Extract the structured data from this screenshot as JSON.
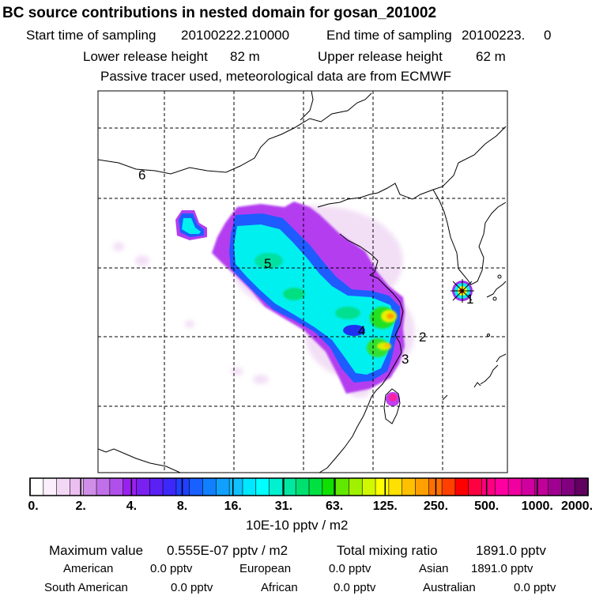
{
  "header": {
    "title": "BC  source contributions in nested domain for gosan_201002",
    "start_label": "Start time of sampling",
    "start_value": "20100222.210000",
    "end_label": "End time of sampling",
    "end_value": "20100223.     0",
    "lower_label": "Lower release height",
    "lower_value": "82 m",
    "upper_label": "Upper release height",
    "upper_value": "62 m",
    "tracer_note": "Passive tracer used, meteorological data are from ECMWF"
  },
  "map": {
    "region_labels": [
      "1",
      "2",
      "3",
      "4",
      "5",
      "6"
    ],
    "colors": {
      "land_border": "#000000",
      "grid": "#000000",
      "plume_low": "#f4e8f8",
      "plume_violet": "#a020f0",
      "plume_blue": "#1e6cff",
      "plume_cyan": "#00ffff",
      "plume_green": "#00e000",
      "plume_yellow": "#ffff00",
      "plume_red": "#ff2000"
    }
  },
  "colorbar": {
    "labels": [
      "0.",
      "2.",
      "4.",
      "8.",
      "16.",
      "31.",
      "63.",
      "125.",
      "250.",
      "500.",
      "1000.",
      "2000."
    ],
    "unit": "10E-10 pptv / m2",
    "colors": [
      "#ffffff",
      "#fbeffc",
      "#f3d8f6",
      "#ebbff0",
      "#cf8ee8",
      "#c070e8",
      "#b050ea",
      "#9a20f0",
      "#7a20f0",
      "#5a20f4",
      "#3c28f8",
      "#2040ff",
      "#1860ff",
      "#1080ff",
      "#10a0ff",
      "#10c0ff",
      "#00e8ff",
      "#00ffff",
      "#00f0d0",
      "#00e8a0",
      "#00e070",
      "#00e040",
      "#10e000",
      "#60e800",
      "#a0f000",
      "#d0f800",
      "#ffff00",
      "#ffe000",
      "#ffc000",
      "#ffa000",
      "#ff7000",
      "#ff4000",
      "#ff0000",
      "#ff0040",
      "#ff0080",
      "#ff00a0",
      "#f000a0",
      "#d000a0",
      "#c00098",
      "#a00090",
      "#800080",
      "#600060"
    ]
  },
  "stats": {
    "max_label": "Maximum value",
    "max_value": "0.555E-07 pptv / m2",
    "total_label": "Total mixing ratio",
    "total_value": "1891.0 pptv",
    "regions": [
      {
        "name": "American",
        "value": "0.0 pptv"
      },
      {
        "name": "European",
        "value": "0.0 pptv"
      },
      {
        "name": "Asian",
        "value": "1891.0 pptv"
      },
      {
        "name": "South American",
        "value": "0.0 pptv"
      },
      {
        "name": "African",
        "value": "0.0 pptv"
      },
      {
        "name": "Australian",
        "value": "0.0 pptv"
      }
    ]
  }
}
